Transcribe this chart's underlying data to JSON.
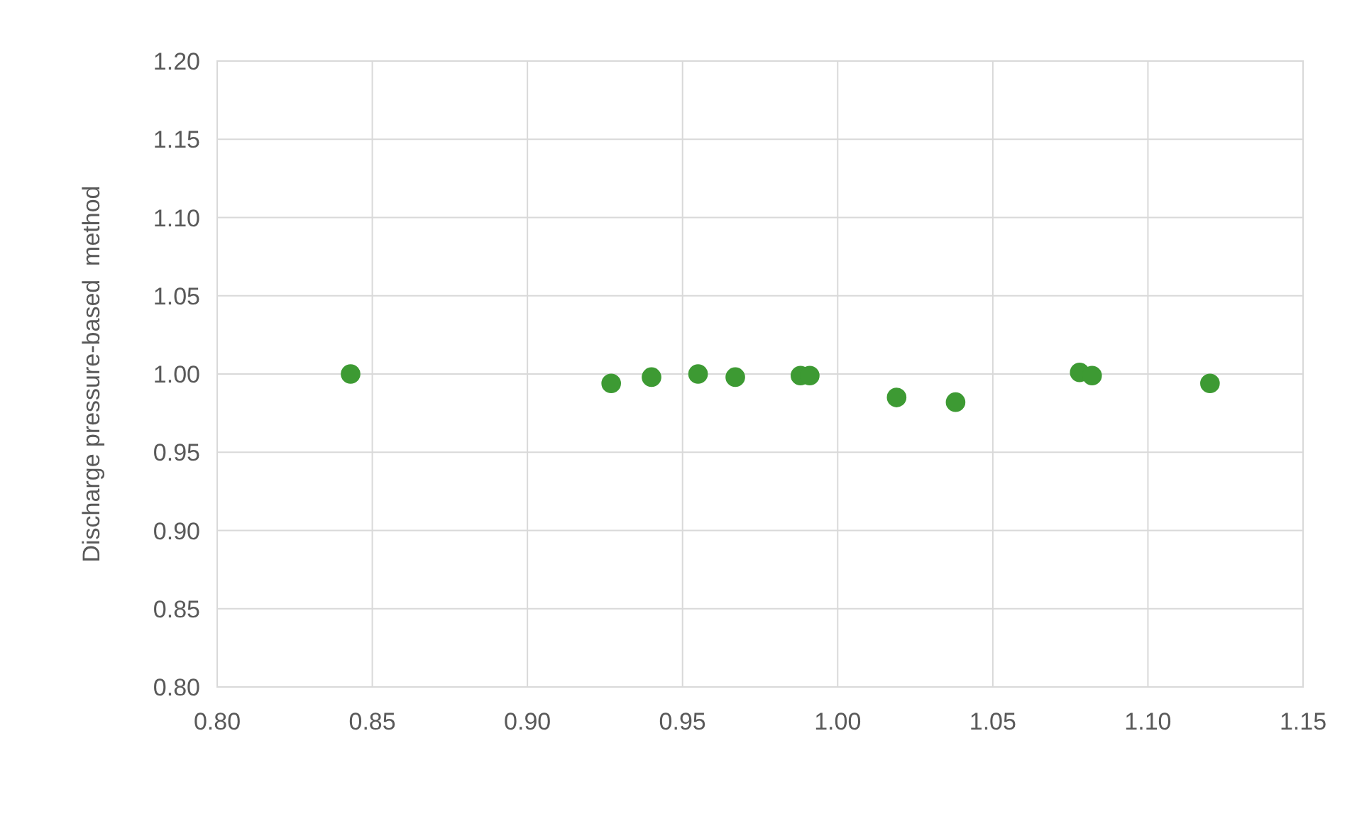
{
  "chart_data": {
    "type": "scatter",
    "ylabel": "Discharge pressure-based  method",
    "x": [
      0.843,
      0.927,
      0.94,
      0.955,
      0.967,
      0.988,
      0.991,
      1.019,
      1.038,
      1.078,
      1.082,
      1.12
    ],
    "series": [
      {
        "color": "#3d9a33",
        "values": [
          1.0,
          0.994,
          0.998,
          1.0,
          0.998,
          0.999,
          0.999,
          0.985,
          0.982,
          1.001,
          0.999,
          0.994
        ]
      }
    ],
    "xlim": [
      0.8,
      1.15
    ],
    "xticks": [
      {
        "value": 0.8,
        "label": "0.80"
      },
      {
        "value": 0.85,
        "label": "0.85"
      },
      {
        "value": 0.9,
        "label": "0.90"
      },
      {
        "value": 0.95,
        "label": "0.95"
      },
      {
        "value": 1.0,
        "label": "1.00"
      },
      {
        "value": 1.05,
        "label": "1.05"
      },
      {
        "value": 1.1,
        "label": "1.10"
      },
      {
        "value": 1.15,
        "label": "1.15"
      }
    ],
    "ylim": [
      0.8,
      1.2
    ],
    "yticks": [
      {
        "value": 0.8,
        "label": "0.80"
      },
      {
        "value": 0.85,
        "label": "0.85"
      },
      {
        "value": 0.9,
        "label": "0.90"
      },
      {
        "value": 0.95,
        "label": "0.95"
      },
      {
        "value": 1.0,
        "label": "1.00"
      },
      {
        "value": 1.05,
        "label": "1.05"
      },
      {
        "value": 1.1,
        "label": "1.10"
      },
      {
        "value": 1.15,
        "label": "1.15"
      },
      {
        "value": 1.2,
        "label": "1.20"
      }
    ],
    "grid": true,
    "marker": "circle"
  }
}
